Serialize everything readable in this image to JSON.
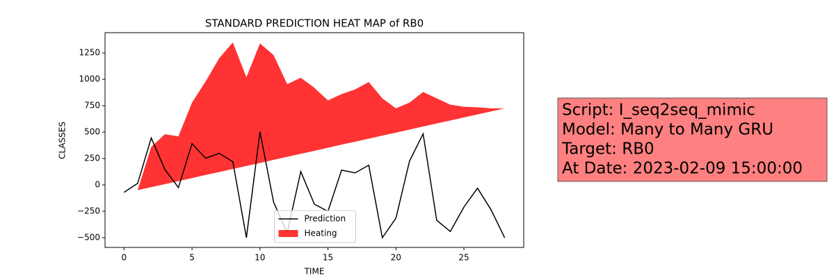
{
  "chart_data": {
    "type": "line",
    "title": "STANDARD PREDICTION HEAT MAP of RB0",
    "x_label": "TIME",
    "y_label": "CLASSES",
    "x": [
      0,
      1,
      2,
      3,
      4,
      5,
      6,
      7,
      8,
      9,
      10,
      11,
      12,
      13,
      14,
      15,
      16,
      17,
      18,
      19,
      20,
      21,
      22,
      23,
      24,
      25,
      26,
      27,
      28
    ],
    "series": [
      {
        "name": "Prediction",
        "color": "#000000",
        "kind": "line",
        "values": [
          -70,
          15,
          444,
          147,
          -25,
          391,
          253,
          299,
          220,
          -500,
          504,
          -163,
          -454,
          127,
          -183,
          -250,
          140,
          114,
          187,
          -500,
          -315,
          226,
          484,
          -335,
          -441,
          -210,
          -31,
          -236,
          -500
        ]
      },
      {
        "name": "Heating",
        "color": "#ff0000",
        "opacity": 0.8,
        "kind": "area",
        "values": [
          -70,
          -50,
          360,
          480,
          460,
          780,
          980,
          1200,
          1350,
          1020,
          1340,
          1230,
          955,
          1015,
          920,
          800,
          860,
          905,
          975,
          820,
          725,
          780,
          880,
          820,
          760,
          740,
          735,
          725,
          725
        ],
        "lower": [
          -70,
          -50,
          -21,
          7,
          36,
          65,
          94,
          122,
          151,
          180,
          208,
          237,
          266,
          294,
          323,
          352,
          381,
          409,
          438,
          467,
          495,
          524,
          553,
          582,
          610,
          639,
          668,
          696,
          725
        ]
      }
    ],
    "xlim": [
      -1.4,
      29.4
    ],
    "ylim": [
      -592,
      1442
    ],
    "xticks": [
      0,
      5,
      10,
      15,
      20,
      25
    ],
    "yticks": [
      {
        "value": -500,
        "label": "−500"
      },
      {
        "value": -250,
        "label": "−250"
      },
      0,
      250,
      500,
      750,
      1000,
      1250
    ],
    "legend": "lower center",
    "annotation": {
      "lines": [
        "Script: I_seq2seq_mimic",
        "Model: Many to Many GRU",
        "Target: RB0",
        "At Date: 2023-02-09 15:00:00"
      ],
      "color": "#ff8080"
    }
  }
}
